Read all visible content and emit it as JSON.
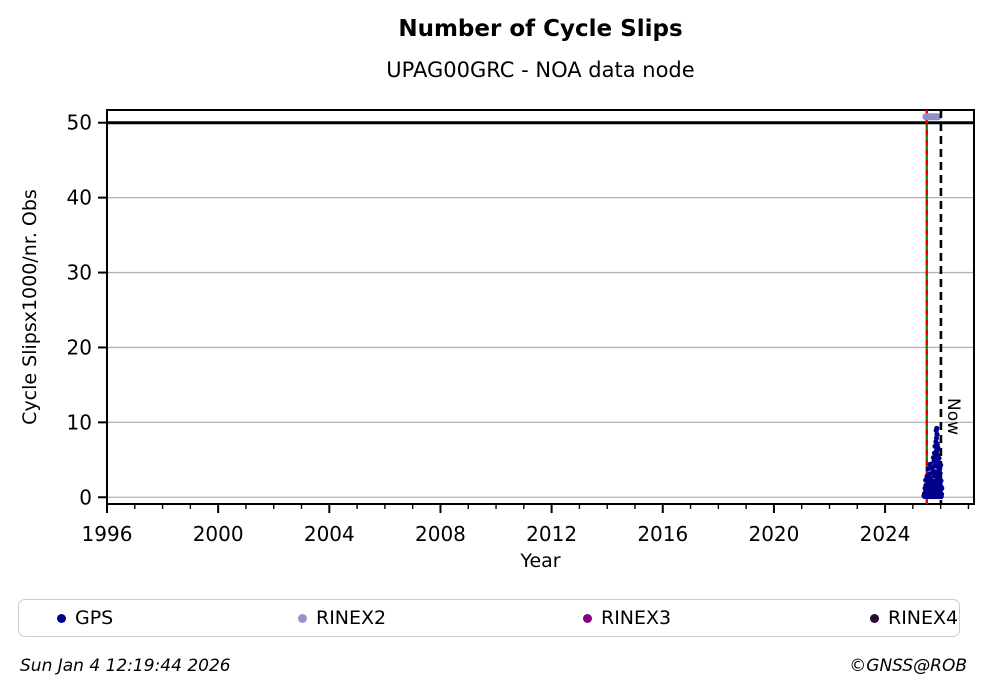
{
  "header": {
    "title": "Number of Cycle Slips",
    "subtitle": "UPAG00GRC - NOA data node"
  },
  "footer": {
    "timestamp": "Sun Jan  4 12:19:44 2026",
    "credit": "©GNSS@ROB"
  },
  "legend": {
    "items": [
      {
        "label": "GPS",
        "color": "#00008b"
      },
      {
        "label": "RINEX2",
        "color": "#9494ce"
      },
      {
        "label": "RINEX3",
        "color": "#800080"
      },
      {
        "label": "RINEX4",
        "color": "#2a0a33"
      }
    ]
  },
  "chart_data": {
    "type": "scatter",
    "title": "Number of Cycle Slips",
    "subtitle": "UPAG00GRC - NOA data node",
    "xlabel": "Year",
    "ylabel": "Cycle Slipsx1000/nr. Obs",
    "xlim": [
      1996,
      2027.2
    ],
    "ylim": [
      -0.9,
      51.7
    ],
    "xticks_major": [
      1996,
      2000,
      2004,
      2008,
      2012,
      2016,
      2020,
      2024
    ],
    "xtick_minor_step": 1,
    "yticks": [
      0,
      10,
      20,
      30,
      40,
      50
    ],
    "grid": true,
    "grid_color": "#b3b3b3",
    "frame_color": "#000000",
    "limit_line": {
      "value": 50,
      "color": "#000000"
    },
    "annotations": {
      "data_start_line": {
        "year": 2025.5,
        "solid_color": "#007f00",
        "dash_color": "#dd0000"
      },
      "now_line": {
        "year": 2026.01,
        "label": "Now",
        "color": "#000000"
      },
      "rinex2_bar": {
        "year_start": 2025.36,
        "year_end": 2026.01,
        "value": 50.8,
        "color": "#9090c8"
      }
    },
    "series": [
      {
        "name": "GPS",
        "color": "#00008b",
        "marker": "dot",
        "points": [
          [
            2025.4,
            0.2
          ],
          [
            2025.42,
            0.5
          ],
          [
            2025.43,
            0.1
          ],
          [
            2025.45,
            0.3
          ],
          [
            2025.46,
            0.7
          ],
          [
            2025.48,
            0.2
          ],
          [
            2025.49,
            0.6
          ],
          [
            2025.5,
            0.1
          ],
          [
            2025.51,
            0.4
          ],
          [
            2025.53,
            0.8
          ],
          [
            2025.54,
            0.3
          ],
          [
            2025.55,
            0.1
          ],
          [
            2025.56,
            0.6
          ],
          [
            2025.58,
            0.2
          ],
          [
            2025.59,
            0.5
          ],
          [
            2025.6,
            0.9
          ],
          [
            2025.61,
            0.3
          ],
          [
            2025.63,
            0.1
          ],
          [
            2025.64,
            0.7
          ],
          [
            2025.65,
            0.4
          ],
          [
            2025.66,
            0.2
          ],
          [
            2025.68,
            0.8
          ],
          [
            2025.69,
            0.1
          ],
          [
            2025.7,
            0.5
          ],
          [
            2025.72,
            0.3
          ],
          [
            2025.73,
            0.9
          ],
          [
            2025.74,
            0.2
          ],
          [
            2025.76,
            0.6
          ],
          [
            2025.77,
            0.1
          ],
          [
            2025.78,
            0.4
          ],
          [
            2025.8,
            0.8
          ],
          [
            2025.81,
            0.2
          ],
          [
            2025.83,
            0.5
          ],
          [
            2025.84,
            0.1
          ],
          [
            2025.86,
            0.7
          ],
          [
            2025.87,
            0.3
          ],
          [
            2025.89,
            0.9
          ],
          [
            2025.9,
            0.2
          ],
          [
            2025.92,
            0.5
          ],
          [
            2025.93,
            0.1
          ],
          [
            2025.95,
            0.6
          ],
          [
            2025.96,
            0.3
          ],
          [
            2025.98,
            0.8
          ],
          [
            2025.99,
            0.2
          ],
          [
            2026.0,
            0.5
          ],
          [
            2026.02,
            0.1
          ],
          [
            2026.03,
            0.4
          ],
          [
            2025.44,
            1.2
          ],
          [
            2025.47,
            1.6
          ],
          [
            2025.52,
            1.1
          ],
          [
            2025.57,
            1.8
          ],
          [
            2025.62,
            1.3
          ],
          [
            2025.67,
            1.9
          ],
          [
            2025.71,
            1.4
          ],
          [
            2025.75,
            1.7
          ],
          [
            2025.79,
            1.2
          ],
          [
            2025.82,
            1.5
          ],
          [
            2025.85,
            1.9
          ],
          [
            2025.88,
            1.3
          ],
          [
            2025.91,
            1.6
          ],
          [
            2025.94,
            1.1
          ],
          [
            2025.97,
            1.8
          ],
          [
            2026.01,
            1.4
          ],
          [
            2026.04,
            1.2
          ],
          [
            2025.46,
            2.3
          ],
          [
            2025.51,
            2.8
          ],
          [
            2025.56,
            2.2
          ],
          [
            2025.6,
            3.1
          ],
          [
            2025.65,
            2.5
          ],
          [
            2025.7,
            3.3
          ],
          [
            2025.74,
            2.1
          ],
          [
            2025.78,
            2.9
          ],
          [
            2025.82,
            3.4
          ],
          [
            2025.86,
            2.4
          ],
          [
            2025.9,
            3.0
          ],
          [
            2025.94,
            2.6
          ],
          [
            2025.98,
            3.2
          ],
          [
            2026.01,
            2.2
          ],
          [
            2025.55,
            3.8
          ],
          [
            2025.62,
            4.4
          ],
          [
            2025.7,
            3.9
          ],
          [
            2025.76,
            4.8
          ],
          [
            2025.8,
            4.2
          ],
          [
            2025.84,
            4.9
          ],
          [
            2025.88,
            4.1
          ],
          [
            2025.92,
            4.6
          ],
          [
            2025.96,
            3.7
          ],
          [
            2026.0,
            4.3
          ],
          [
            2025.74,
            5.3
          ],
          [
            2025.78,
            5.9
          ],
          [
            2025.82,
            5.5
          ],
          [
            2025.85,
            6.2
          ],
          [
            2025.88,
            5.7
          ],
          [
            2025.91,
            6.4
          ],
          [
            2025.94,
            5.2
          ],
          [
            2025.8,
            6.8
          ],
          [
            2025.83,
            7.4
          ],
          [
            2025.85,
            7.9
          ],
          [
            2025.87,
            8.4
          ],
          [
            2025.84,
            8.9
          ],
          [
            2025.86,
            9.2
          ],
          [
            2025.88,
            7.1
          ],
          [
            2025.9,
            6.6
          ]
        ]
      }
    ]
  }
}
